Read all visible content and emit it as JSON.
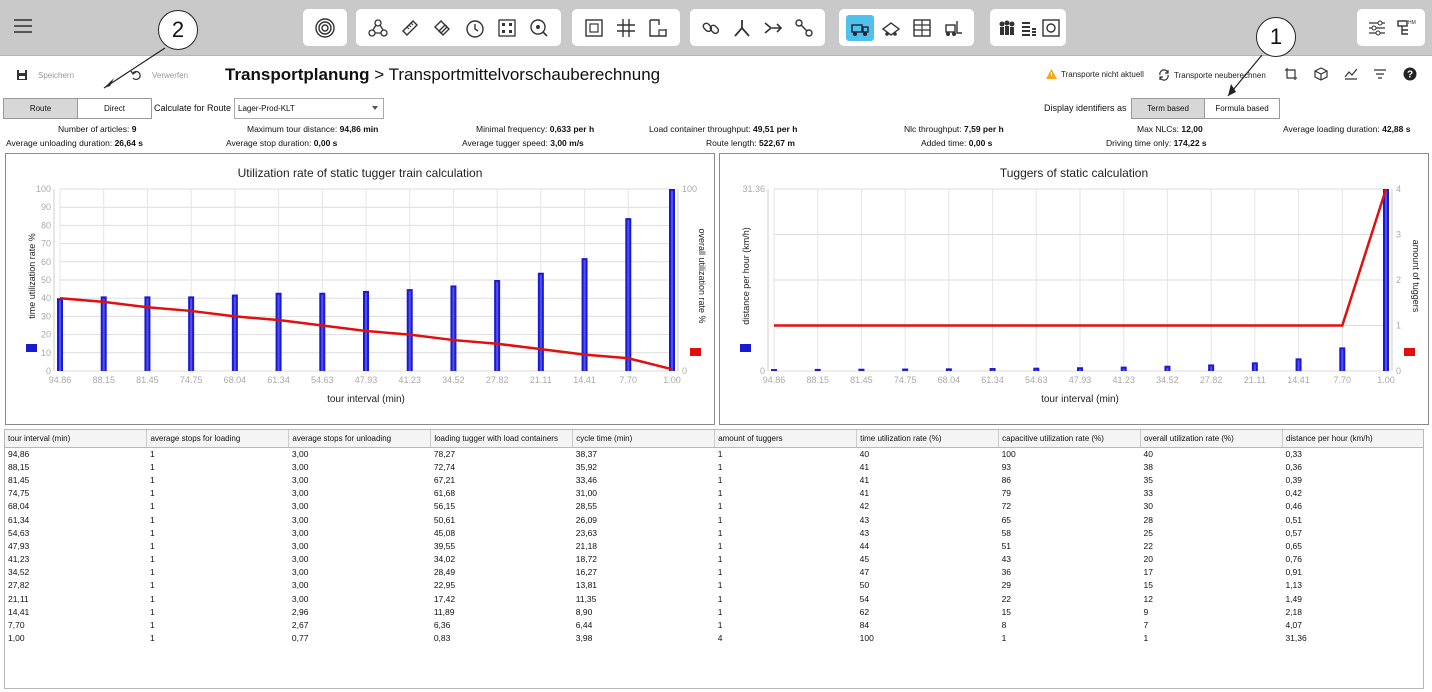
{
  "toolbar": {
    "menu_icon": "hamburger-icon",
    "groups": [
      {
        "name": "analysis",
        "icons": [
          "target-icon"
        ]
      },
      {
        "name": "tools",
        "icons": [
          "network-icon",
          "ruler-icon",
          "layers-icon",
          "clock-icon",
          "grid-dots-icon",
          "search-zoom-icon"
        ]
      },
      {
        "name": "layout",
        "icons": [
          "frame-icon",
          "hash-grid-icon",
          "corner-frame-icon"
        ]
      },
      {
        "name": "routing",
        "icons": [
          "chain-link-icon",
          "route-person-icon",
          "arrow-flow-icon",
          "connector-icon"
        ]
      },
      {
        "name": "transport",
        "icons": [
          "tugger-train-icon",
          "conveyor-icon",
          "rack-icon",
          "forklift-icon"
        ]
      },
      {
        "name": "resources",
        "icons": [
          "people-icon",
          "stack-icon",
          "box-frame-icon"
        ]
      }
    ],
    "right_icons": [
      "sliders-icon",
      "hmf-hierarchy-icon"
    ]
  },
  "actions": {
    "save_label": "Speichern",
    "discard_label": "Verwerfen",
    "breadcrumb_root": "Transportplanung",
    "breadcrumb_sep": ">",
    "breadcrumb_leaf": "Transportmittelvorschauberechnung",
    "warning_label": "Transporte nicht aktuell",
    "recalc_label": "Transporte neuberechnen"
  },
  "callouts": {
    "one": "1",
    "two": "2"
  },
  "controls": {
    "mode_route": "Route",
    "mode_direct": "Direct",
    "calc_for_label": "Calculate for Route",
    "route_value": "Lager-Prod-KLT",
    "display_ids_label": "Display identifiers as",
    "term_based": "Term based",
    "formula_based": "Formula based"
  },
  "stats": {
    "articles_label": "Number of articles:",
    "articles": "9",
    "max_tour_label": "Maximum tour distance:",
    "max_tour": "94,86 min",
    "min_freq_label": "Minimal frequency:",
    "min_freq": "0,633 per h",
    "lc_tp_label": "Load container throughput:",
    "lc_tp": "49,51 per h",
    "nlc_tp_label": "Nlc throughput:",
    "nlc_tp": "7,59 per h",
    "max_nlcs_label": "Max NLCs:",
    "max_nlcs": "12,00",
    "avg_load_label": "Average loading duration:",
    "avg_load": "42,88 s",
    "avg_unload_label": "Average unloading duration:",
    "avg_unload": "26,64 s",
    "avg_stop_label": "Average stop duration:",
    "avg_stop": "0,00 s",
    "avg_speed_label": "Average tugger speed:",
    "avg_speed": "3,00 m/s",
    "route_len_label": "Route length:",
    "route_len": "522,67 m",
    "added_time_label": "Added time:",
    "added_time": "0,00 s",
    "driving_label": "Driving time only:",
    "driving": "174,22 s"
  },
  "chart_data": [
    {
      "type": "bar",
      "title": "Utilization rate of static tugger train calculation",
      "xlabel": "tour interval (min)",
      "ylabel": "time utilization rate %",
      "y2label": "overall utilization rate %",
      "ylim": [
        0,
        100
      ],
      "y_ticks": [
        "0",
        "10",
        "20",
        "30",
        "40",
        "50",
        "60",
        "70",
        "80",
        "90",
        "100"
      ],
      "y2_ticks": [
        "0",
        "100"
      ],
      "categories": [
        "94.86",
        "88.15",
        "81.45",
        "74.75",
        "68.04",
        "61.34",
        "54.63",
        "47.93",
        "41.23",
        "34.52",
        "27.82",
        "21.11",
        "14.41",
        "7.70",
        "1.00"
      ],
      "series": [
        {
          "name": "time utilization rate %",
          "kind": "bar",
          "color": "#1a1ad0",
          "values": [
            40,
            41,
            41,
            41,
            42,
            43,
            43,
            44,
            45,
            47,
            50,
            54,
            62,
            84,
            100
          ]
        },
        {
          "name": "overall utilization rate %",
          "kind": "line",
          "color": "#e01010",
          "values": [
            40,
            38,
            35,
            33,
            30,
            28,
            25,
            22,
            20,
            17,
            15,
            12,
            9,
            7,
            1
          ]
        }
      ]
    },
    {
      "type": "bar",
      "title": "Tuggers of static calculation",
      "xlabel": "tour interval (min)",
      "ylabel": "distance per hour (km/h)",
      "y2label": "amount of tuggers",
      "ylim": [
        0,
        31.36
      ],
      "y_ticks": [
        "0",
        "31.36"
      ],
      "y2_ticks": [
        "0",
        "1",
        "2",
        "3",
        "4"
      ],
      "categories": [
        "94.86",
        "88.15",
        "81.45",
        "74.75",
        "68.04",
        "61.34",
        "54.63",
        "47.93",
        "41.23",
        "34.52",
        "27.82",
        "21.11",
        "14.41",
        "7.70",
        "1.00"
      ],
      "series": [
        {
          "name": "distance per hour (km/h)",
          "kind": "bar",
          "color": "#1a1ad0",
          "values": [
            0.33,
            0.36,
            0.39,
            0.42,
            0.46,
            0.51,
            0.57,
            0.65,
            0.76,
            0.91,
            1.13,
            1.49,
            2.18,
            4.07,
            31.36
          ]
        },
        {
          "name": "amount of tuggers",
          "kind": "line",
          "color": "#e01010",
          "values": [
            1,
            1,
            1,
            1,
            1,
            1,
            1,
            1,
            1,
            1,
            1,
            1,
            1,
            1,
            4
          ]
        }
      ]
    }
  ],
  "table": {
    "headers": [
      "tour interval (min)",
      "average stops for loading",
      "average stops for unloading",
      "loading tugger with load containers",
      "cycle time (min)",
      "amount of tuggers",
      "time utilization rate (%)",
      "capacitive utilization rate (%)",
      "overall utilization rate (%)",
      "distance per hour (km/h)"
    ],
    "rows": [
      [
        "94,86",
        "1",
        "3,00",
        "78,27",
        "38,37",
        "1",
        "40",
        "100",
        "40",
        "0,33"
      ],
      [
        "88,15",
        "1",
        "3,00",
        "72,74",
        "35,92",
        "1",
        "41",
        "93",
        "38",
        "0,36"
      ],
      [
        "81,45",
        "1",
        "3,00",
        "67,21",
        "33,46",
        "1",
        "41",
        "86",
        "35",
        "0,39"
      ],
      [
        "74,75",
        "1",
        "3,00",
        "61,68",
        "31,00",
        "1",
        "41",
        "79",
        "33",
        "0,42"
      ],
      [
        "68,04",
        "1",
        "3,00",
        "56,15",
        "28,55",
        "1",
        "42",
        "72",
        "30",
        "0,46"
      ],
      [
        "61,34",
        "1",
        "3,00",
        "50,61",
        "26,09",
        "1",
        "43",
        "65",
        "28",
        "0,51"
      ],
      [
        "54,63",
        "1",
        "3,00",
        "45,08",
        "23,63",
        "1",
        "43",
        "58",
        "25",
        "0,57"
      ],
      [
        "47,93",
        "1",
        "3,00",
        "39,55",
        "21,18",
        "1",
        "44",
        "51",
        "22",
        "0,65"
      ],
      [
        "41,23",
        "1",
        "3,00",
        "34,02",
        "18,72",
        "1",
        "45",
        "43",
        "20",
        "0,76"
      ],
      [
        "34,52",
        "1",
        "3,00",
        "28,49",
        "16,27",
        "1",
        "47",
        "36",
        "17",
        "0,91"
      ],
      [
        "27,82",
        "1",
        "3,00",
        "22,95",
        "13,81",
        "1",
        "50",
        "29",
        "15",
        "1,13"
      ],
      [
        "21,11",
        "1",
        "3,00",
        "17,42",
        "11,35",
        "1",
        "54",
        "22",
        "12",
        "1,49"
      ],
      [
        "14,41",
        "1",
        "2,96",
        "11,89",
        "8,90",
        "1",
        "62",
        "15",
        "9",
        "2,18"
      ],
      [
        "7,70",
        "1",
        "2,67",
        "6,36",
        "6,44",
        "1",
        "84",
        "8",
        "7",
        "4,07"
      ],
      [
        "1,00",
        "1",
        "0,77",
        "0,83",
        "3,98",
        "4",
        "100",
        "1",
        "1",
        "31,36"
      ]
    ]
  }
}
